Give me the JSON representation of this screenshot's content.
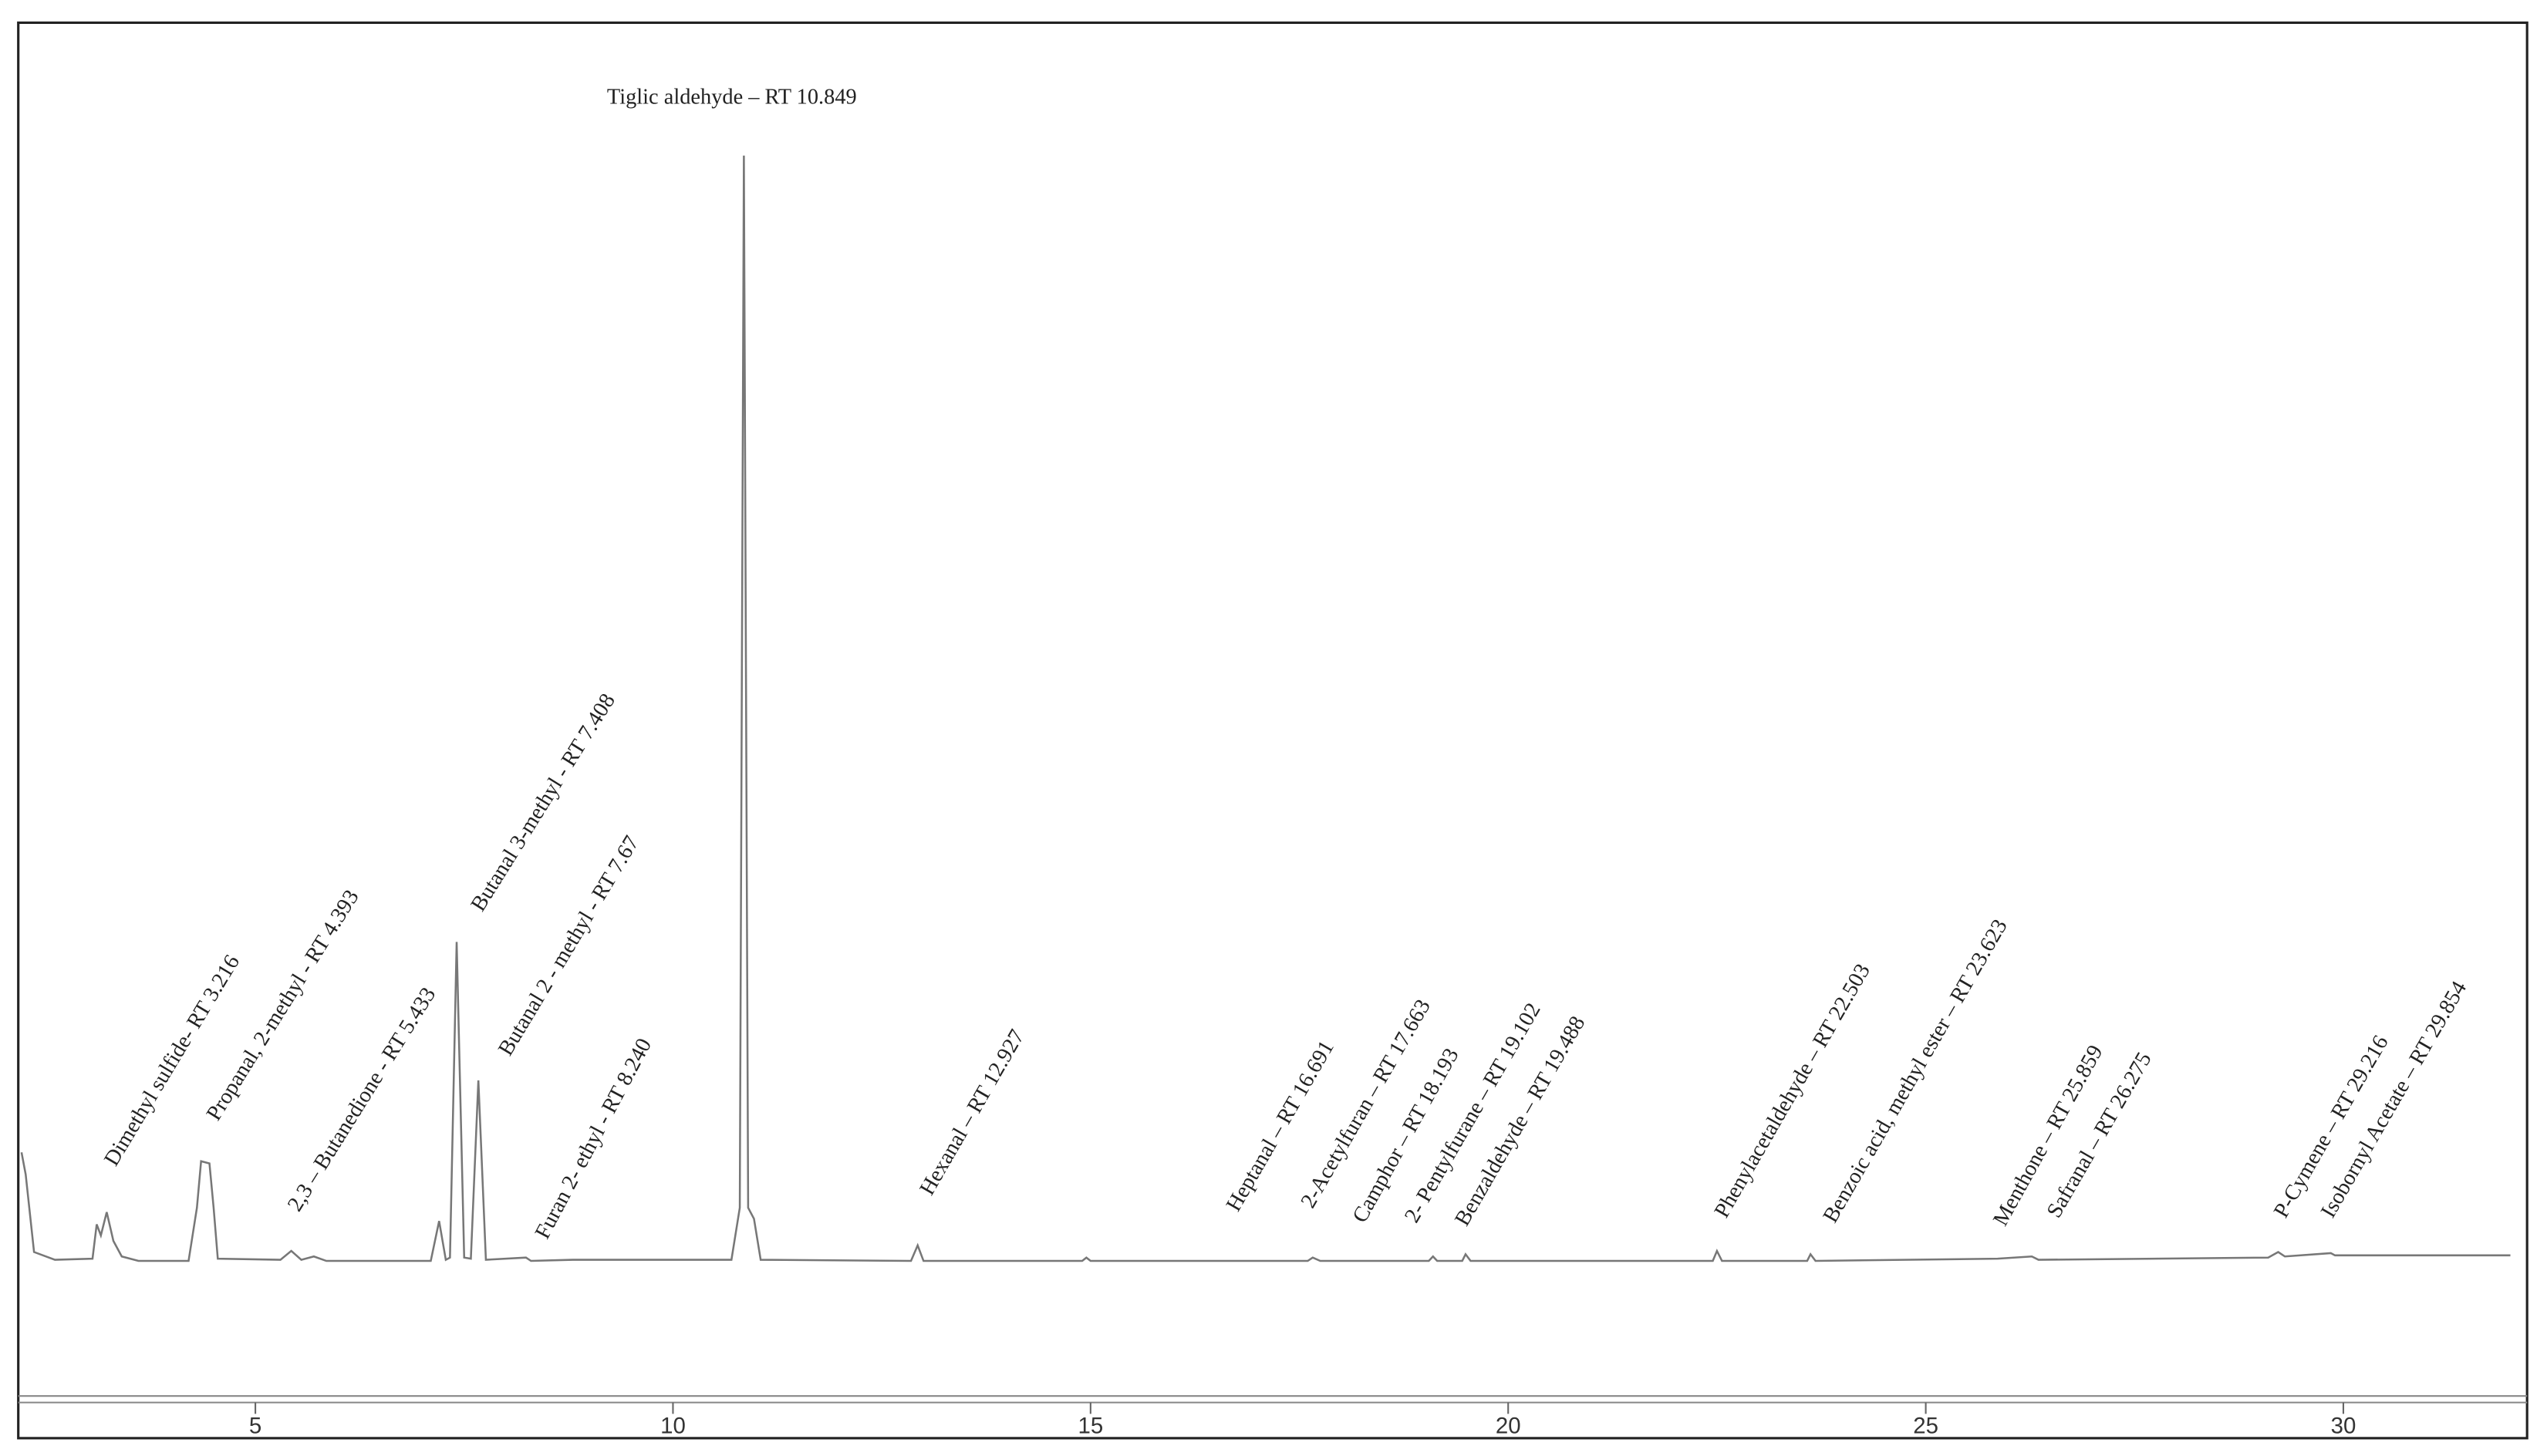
{
  "chart_data": {
    "type": "line",
    "x": [
      2.2,
      2.25,
      2.35,
      2.6,
      3.05,
      3.1,
      3.15,
      3.22,
      3.3,
      3.4,
      3.6,
      4.2,
      4.3,
      4.35,
      4.45,
      4.5,
      4.55,
      5.3,
      5.43,
      5.55,
      5.7,
      5.85,
      7.1,
      7.2,
      7.28,
      7.33,
      7.41,
      7.5,
      7.58,
      7.67,
      7.76,
      8.24,
      8.3,
      8.8,
      10.7,
      10.8,
      10.849,
      10.9,
      10.97,
      11.05,
      12.85,
      12.93,
      13.0,
      14.9,
      14.95,
      15.0,
      17.6,
      17.66,
      17.75,
      19.05,
      19.1,
      19.15,
      19.45,
      19.49,
      19.55,
      22.45,
      22.5,
      22.56,
      23.58,
      23.62,
      23.68,
      25.86,
      26.27,
      26.35,
      29.1,
      29.22,
      29.3,
      29.85,
      29.9,
      32.0
    ],
    "series": [
      {
        "color": "#777777",
        "values": [
          10,
          8,
          1,
          0.3,
          0.4,
          3.5,
          2.5,
          4.6,
          2,
          0.6,
          0.2,
          0.2,
          5,
          9.2,
          9,
          5,
          0.4,
          0.3,
          1.1,
          0.3,
          0.6,
          0.2,
          0.2,
          3.8,
          0.3,
          0.5,
          29,
          0.5,
          0.4,
          16.5,
          0.3,
          0.5,
          0.2,
          0.3,
          0.3,
          5,
          100,
          5,
          4,
          0.3,
          0.2,
          1.6,
          0.2,
          0.2,
          0.5,
          0.2,
          0.2,
          0.5,
          0.2,
          0.2,
          0.6,
          0.2,
          0.2,
          0.8,
          0.2,
          0.2,
          1.1,
          0.2,
          0.2,
          0.8,
          0.2,
          0.4,
          0.6,
          0.3,
          0.5,
          1.0,
          0.6,
          0.9,
          0.7,
          0.7
        ]
      }
    ],
    "xlim": [
      2.2,
      32.2
    ],
    "ylim": [
      -12,
      112
    ],
    "xticks": [
      5,
      10,
      15,
      20,
      25,
      30
    ],
    "annotations": [
      "Dimethyl sulfide- RT 3.216",
      "Propanal, 2-methyl - RT 4.393",
      "2,3 – Butanedione - RT 5.433",
      "Butanal 3-methyl - RT 7.408",
      "Butanal 2 - methyl - RT 7.67",
      "Furan 2- ethyl - RT 8.240",
      "Tiglic aldehyde – RT 10.849",
      "Hexanal – RT 12.927",
      "Heptanal – RT 16.691",
      "2-Acetylfuran – RT 17.663",
      "Camphor – RT 18.193",
      "2- Pentylfurane – RT 19.102",
      "Benzaldehyde – RT 19.488",
      "Phenylacetaldehyde – RT 22.503",
      "Benzoic acid, methyl ester – RT 23.623",
      "Menthone – RT 25.859",
      "Safranal – RT 26.275",
      "P-Cymene – RT 29.216",
      "Isobornyl Acetate – RT 29.854"
    ]
  }
}
